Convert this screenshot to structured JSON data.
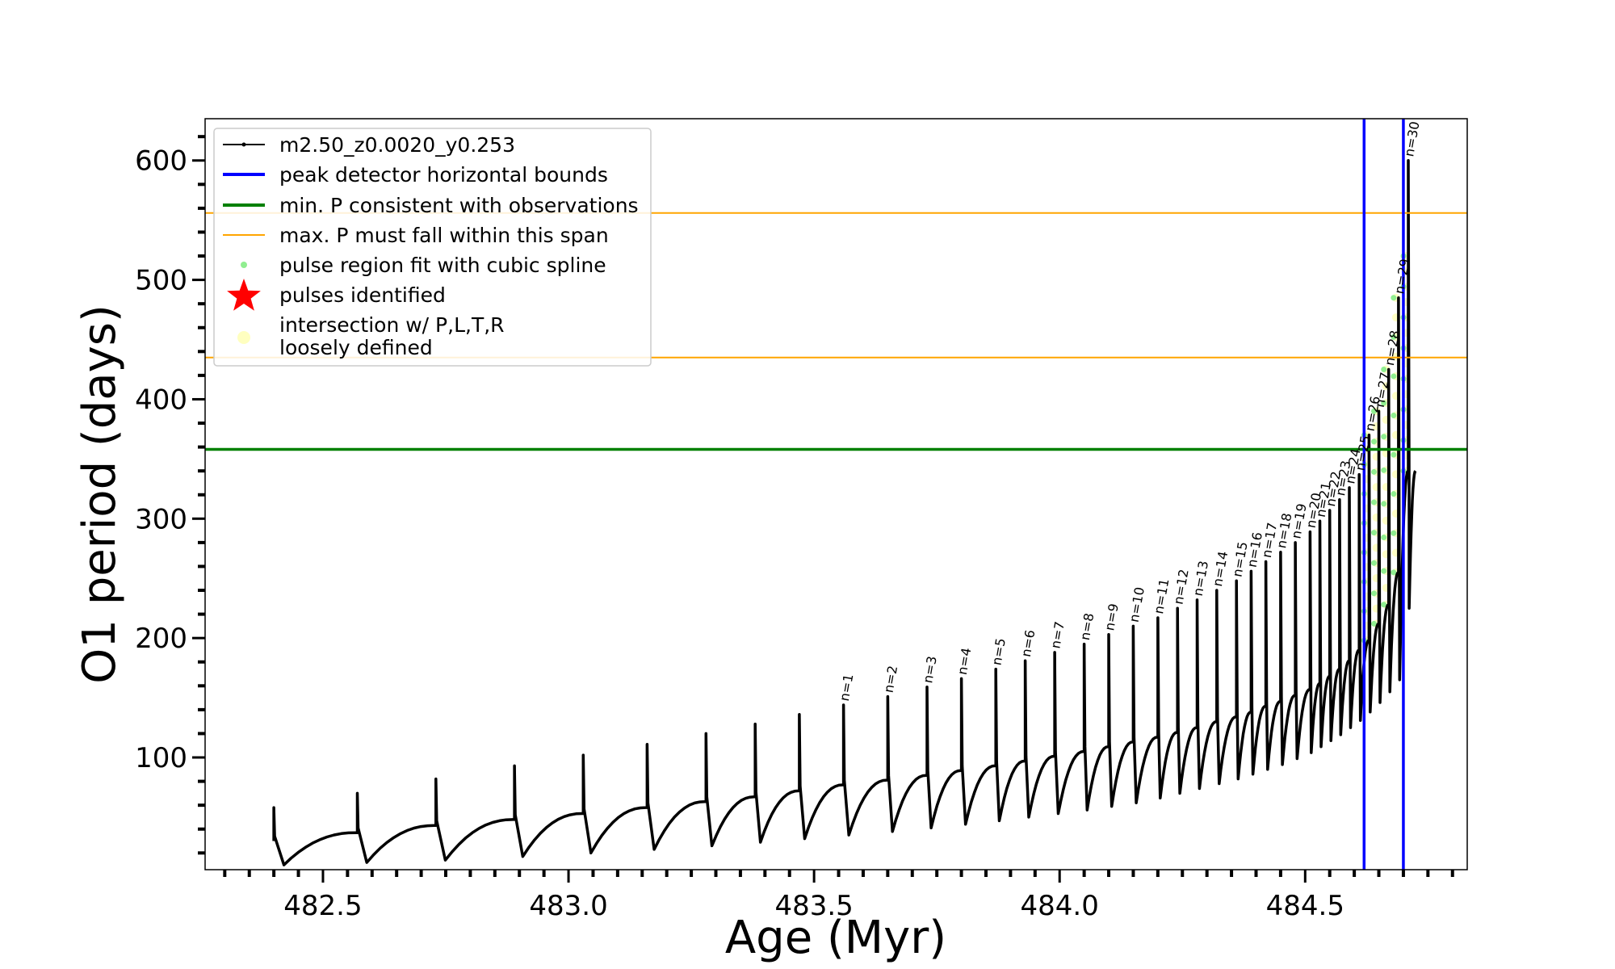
{
  "chart_data": {
    "type": "line",
    "title": "",
    "xlabel": "Age (Myr)",
    "ylabel": "O1 period (days)",
    "xlim": [
      482.26,
      484.83
    ],
    "ylim": [
      6,
      635
    ],
    "xticks_major": [
      482.5,
      483.0,
      483.5,
      484.0,
      484.5
    ],
    "xtick_labels": [
      "482.5",
      "483.0",
      "483.5",
      "484.0",
      "484.5"
    ],
    "xtick_minor_step": 0.05,
    "yticks_major": [
      100,
      200,
      300,
      400,
      500,
      600
    ],
    "ytick_labels": [
      "100",
      "200",
      "300",
      "400",
      "500",
      "600"
    ],
    "ytick_minor_step": 20,
    "grid": false,
    "legend_position": "top-left",
    "legend": [
      {
        "label": "m2.50_z0.0020_y0.253",
        "style": "line-dot",
        "color": "#000000"
      },
      {
        "label": "peak detector horizontal bounds",
        "style": "line",
        "color": "#0000ff"
      },
      {
        "label": "min. P consistent with observations",
        "style": "line",
        "color": "#008000"
      },
      {
        "label": "max. P must fall within this span",
        "style": "thin-line",
        "color": "#ffa500"
      },
      {
        "label": "pulse region fit with cubic spline",
        "style": "dot",
        "color": "#90ee90"
      },
      {
        "label": "pulses identified",
        "style": "star",
        "color": "#ff0000"
      },
      {
        "label": "intersection w/ P,L,T,R\nloosely defined",
        "style": "dot",
        "color": "#ffffc0"
      }
    ],
    "reference_lines": {
      "vertical_blue": [
        484.62,
        484.7
      ],
      "horizontal_green": 358,
      "horizontal_orange": [
        435,
        556
      ]
    },
    "series": [
      {
        "name": "m2.50_z0.0020_y0.253",
        "color": "#000000",
        "pulses": [
          {
            "age": 482.4,
            "peak": 58,
            "base": 30,
            "min": 10,
            "label": ""
          },
          {
            "age": 482.57,
            "peak": 70,
            "base": 37,
            "min": 12,
            "label": ""
          },
          {
            "age": 482.73,
            "peak": 82,
            "base": 43,
            "min": 14,
            "label": ""
          },
          {
            "age": 482.89,
            "peak": 93,
            "base": 48,
            "min": 17,
            "label": ""
          },
          {
            "age": 483.03,
            "peak": 102,
            "base": 53,
            "min": 20,
            "label": ""
          },
          {
            "age": 483.16,
            "peak": 111,
            "base": 58,
            "min": 23,
            "label": ""
          },
          {
            "age": 483.28,
            "peak": 120,
            "base": 63,
            "min": 26,
            "label": ""
          },
          {
            "age": 483.38,
            "peak": 128,
            "base": 67,
            "min": 29,
            "label": ""
          },
          {
            "age": 483.47,
            "peak": 136,
            "base": 72,
            "min": 32,
            "label": ""
          },
          {
            "age": 483.56,
            "peak": 144,
            "base": 77,
            "min": 35,
            "label": "n=1"
          },
          {
            "age": 483.65,
            "peak": 151,
            "base": 81,
            "min": 38,
            "label": "n=2"
          },
          {
            "age": 483.73,
            "peak": 159,
            "base": 85,
            "min": 41,
            "label": "n=3"
          },
          {
            "age": 483.8,
            "peak": 166,
            "base": 89,
            "min": 44,
            "label": "n=4"
          },
          {
            "age": 483.87,
            "peak": 174,
            "base": 93,
            "min": 47,
            "label": "n=5"
          },
          {
            "age": 483.93,
            "peak": 181,
            "base": 97,
            "min": 50,
            "label": "n=6"
          },
          {
            "age": 483.99,
            "peak": 188,
            "base": 101,
            "min": 53,
            "label": "n=7"
          },
          {
            "age": 484.05,
            "peak": 195,
            "base": 105,
            "min": 56,
            "label": "n=8"
          },
          {
            "age": 484.1,
            "peak": 203,
            "base": 109,
            "min": 59,
            "label": "n=9"
          },
          {
            "age": 484.15,
            "peak": 210,
            "base": 113,
            "min": 62,
            "label": "n=10"
          },
          {
            "age": 484.2,
            "peak": 217,
            "base": 117,
            "min": 66,
            "label": "n=11"
          },
          {
            "age": 484.24,
            "peak": 225,
            "base": 121,
            "min": 70,
            "label": "n=12"
          },
          {
            "age": 484.28,
            "peak": 232,
            "base": 125,
            "min": 74,
            "label": "n=13"
          },
          {
            "age": 484.32,
            "peak": 240,
            "base": 130,
            "min": 78,
            "label": "n=14"
          },
          {
            "age": 484.36,
            "peak": 248,
            "base": 134,
            "min": 82,
            "label": "n=15"
          },
          {
            "age": 484.39,
            "peak": 256,
            "base": 138,
            "min": 86,
            "label": "n=16"
          },
          {
            "age": 484.42,
            "peak": 264,
            "base": 143,
            "min": 90,
            "label": "n=17"
          },
          {
            "age": 484.45,
            "peak": 272,
            "base": 147,
            "min": 94,
            "label": "n=18"
          },
          {
            "age": 484.48,
            "peak": 280,
            "base": 152,
            "min": 99,
            "label": "n=19"
          },
          {
            "age": 484.51,
            "peak": 289,
            "base": 157,
            "min": 104,
            "label": "n=20"
          },
          {
            "age": 484.53,
            "peak": 298,
            "base": 162,
            "min": 109,
            "label": "n=21"
          },
          {
            "age": 484.55,
            "peak": 307,
            "base": 168,
            "min": 114,
            "label": "n=22"
          },
          {
            "age": 484.57,
            "peak": 316,
            "base": 174,
            "min": 119,
            "label": "n=23"
          },
          {
            "age": 484.59,
            "peak": 326,
            "base": 181,
            "min": 125,
            "label": "n=24"
          },
          {
            "age": 484.61,
            "peak": 337,
            "base": 190,
            "min": 131,
            "label": "n=25"
          },
          {
            "age": 484.63,
            "peak": 370,
            "base": 198,
            "min": 138,
            "label": "n=26"
          },
          {
            "age": 484.65,
            "peak": 390,
            "base": 212,
            "min": 146,
            "label": "n=27"
          },
          {
            "age": 484.67,
            "peak": 425,
            "base": 228,
            "min": 155,
            "label": "n=28"
          },
          {
            "age": 484.69,
            "peak": 485,
            "base": 255,
            "min": 165,
            "label": "n=29"
          },
          {
            "age": 484.71,
            "peak": 600,
            "base": 340,
            "min": 225,
            "label": "n=30"
          }
        ]
      }
    ]
  }
}
